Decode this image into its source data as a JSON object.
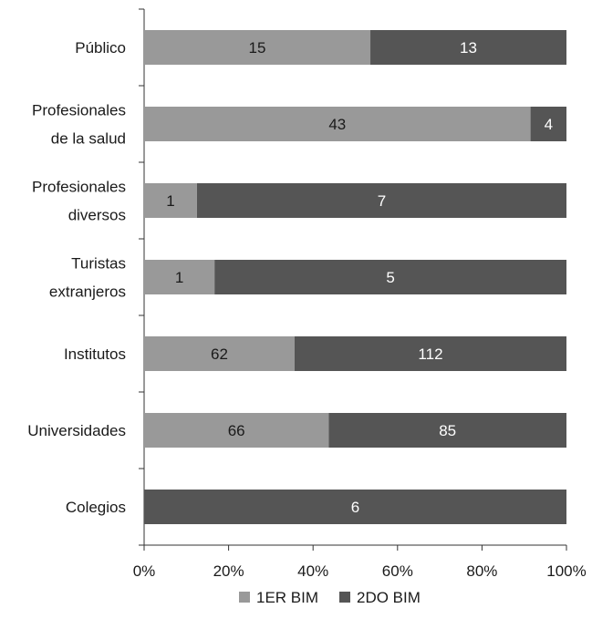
{
  "chart_data": {
    "type": "bar",
    "orientation": "horizontal",
    "stacking": "percent",
    "categories": [
      "Público",
      "Profesionales\nde la salud",
      "Profesionales\ndiversos",
      "Turistas\nextranjeros",
      "Institutos",
      "Universidades",
      "Colegios"
    ],
    "series": [
      {
        "name": "1ER BIM",
        "values": [
          15,
          43,
          1,
          1,
          62,
          66,
          0
        ],
        "color": "#999999"
      },
      {
        "name": "2DO BIM",
        "values": [
          13,
          4,
          7,
          5,
          112,
          85,
          6
        ],
        "color": "#555555"
      }
    ],
    "x_ticks": [
      "0%",
      "20%",
      "40%",
      "60%",
      "80%",
      "100%"
    ],
    "xlim": [
      0,
      100
    ],
    "title": "",
    "xlabel": "",
    "ylabel": "",
    "grid": false,
    "legend_position": "bottom"
  }
}
